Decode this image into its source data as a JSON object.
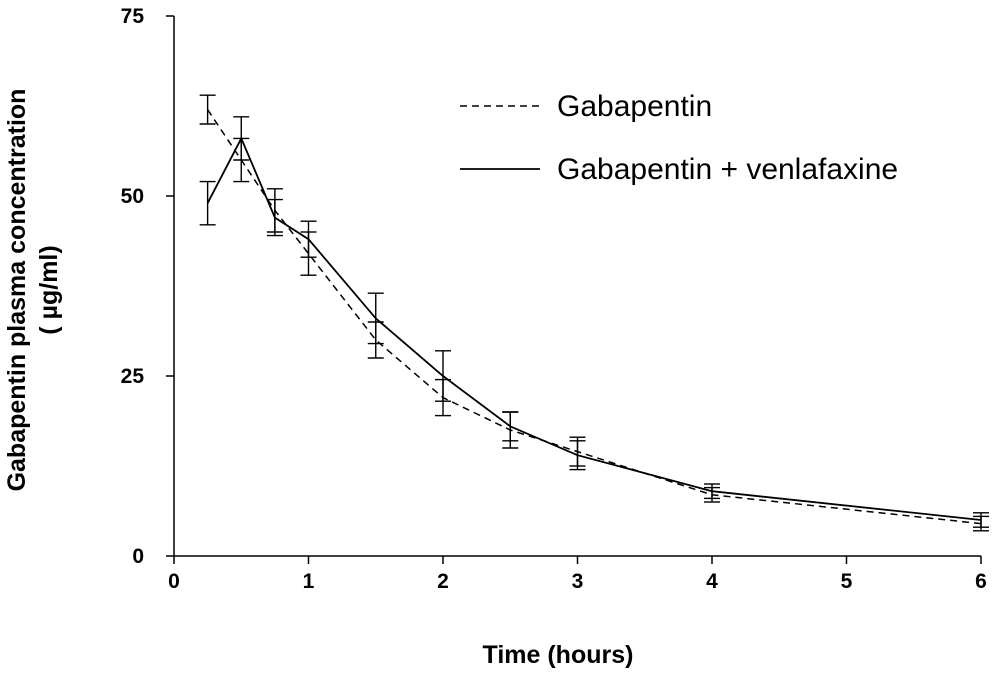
{
  "chart_data": {
    "type": "line",
    "xlabel": "Time (hours)",
    "ylabel_line1": "Gabapentin plasma concentration",
    "ylabel_line2": "( µg/ml)",
    "xlim": [
      0,
      6
    ],
    "ylim": [
      0,
      75
    ],
    "xticks": [
      0,
      1,
      2,
      3,
      4,
      5,
      6
    ],
    "yticks": [
      0,
      25,
      50,
      75
    ],
    "grid": false,
    "legend_position": "top-right",
    "series": [
      {
        "name": "Gabapentin",
        "style": "dashed",
        "x": [
          0.25,
          0.5,
          0.75,
          1,
          1.5,
          2,
          2.5,
          3,
          4,
          6
        ],
        "y": [
          62,
          55,
          48,
          42,
          30,
          22,
          17.5,
          14.5,
          8.5,
          4.5
        ],
        "err": [
          2,
          3,
          3,
          3,
          2.5,
          2.5,
          2.5,
          2,
          1,
          1
        ]
      },
      {
        "name": "Gabapentin + venlafaxine",
        "style": "solid",
        "x": [
          0.25,
          0.5,
          0.75,
          1,
          1.5,
          2,
          2.5,
          3,
          4,
          6
        ],
        "y": [
          49,
          58,
          47,
          44,
          33,
          25,
          18,
          14,
          9,
          5
        ],
        "err": [
          3,
          3,
          2.5,
          2.5,
          3.5,
          3.5,
          2,
          2,
          1,
          1
        ]
      }
    ]
  }
}
